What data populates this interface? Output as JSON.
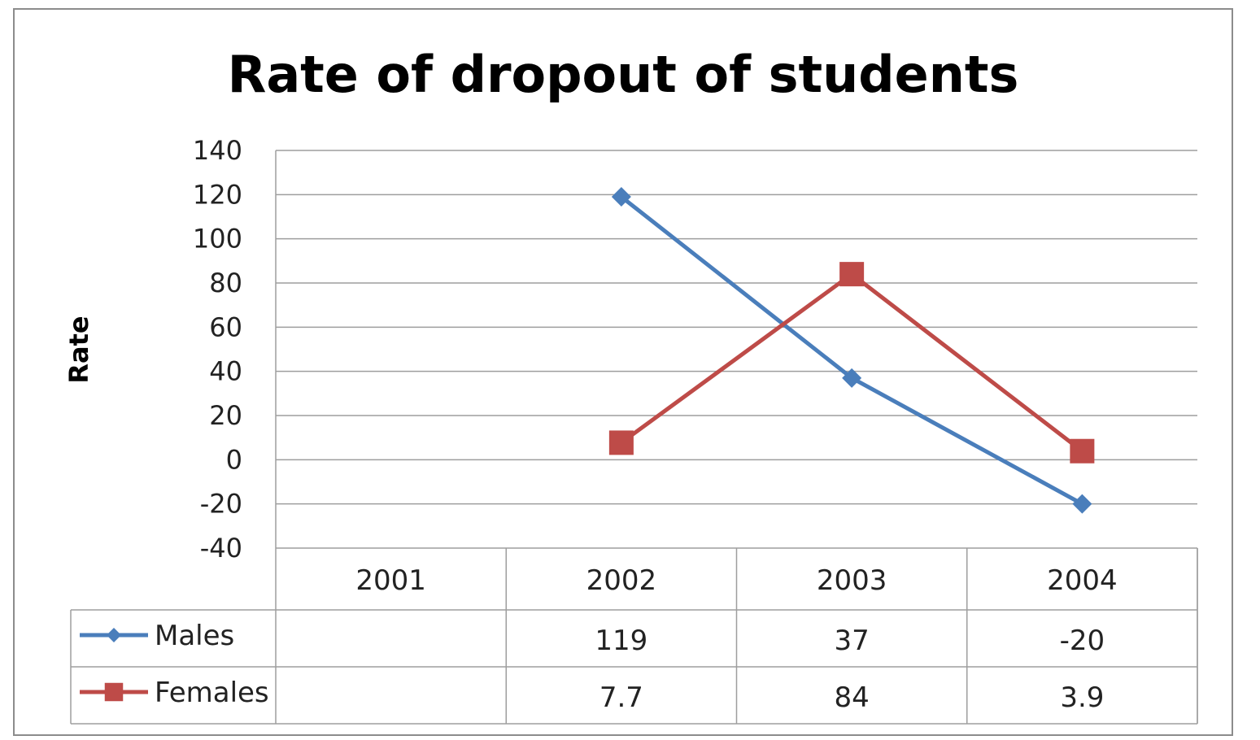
{
  "chart_data": {
    "type": "line",
    "title": "Rate of dropout of students",
    "ylabel": "Rate",
    "xlabel": "",
    "ylim": [
      -40,
      140
    ],
    "yticks": [
      140,
      120,
      100,
      80,
      60,
      40,
      20,
      0,
      -20,
      -40
    ],
    "categories": [
      "2001",
      "2002",
      "2003",
      "2004"
    ],
    "grid": true,
    "legend": "data-table",
    "series": [
      {
        "name": "Males",
        "color": "#4a7ebb",
        "marker": "diamond",
        "values": [
          null,
          119,
          37,
          -20
        ],
        "labels": [
          "",
          "119",
          "37",
          "-20"
        ]
      },
      {
        "name": "Females",
        "color": "#be4b48",
        "marker": "square",
        "values": [
          null,
          7.7,
          84,
          3.9
        ],
        "labels": [
          "",
          "7.7",
          "84",
          "3.9"
        ]
      }
    ]
  }
}
